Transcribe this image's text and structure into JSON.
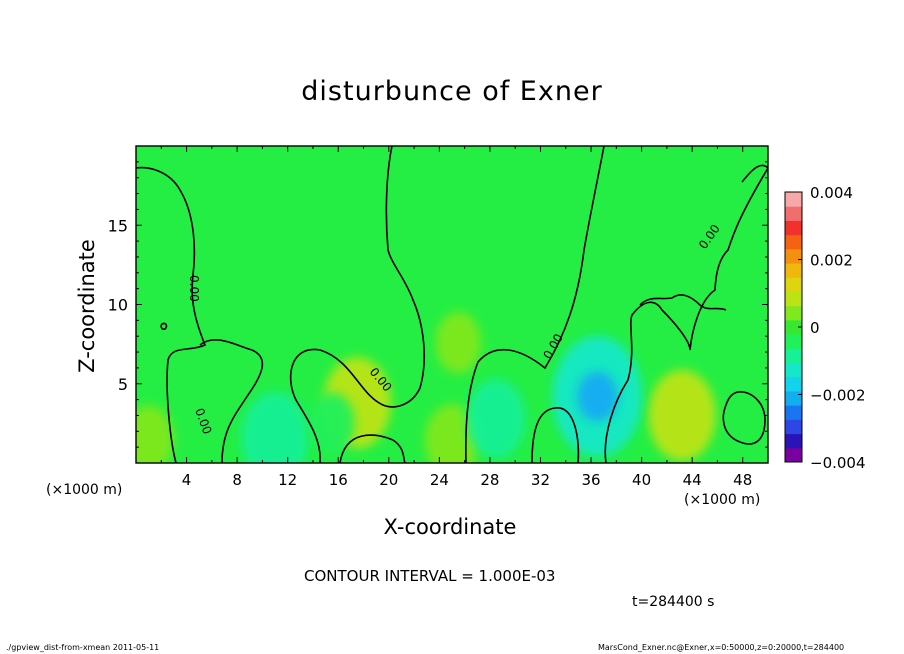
{
  "title": "disturbunce of Exner",
  "footer_left": "./gpview_dist-from-xmean  2011-05-11",
  "footer_right": "MarsCond_Exner.nc@Exner,x=0:50000,z=0:20000,t=284400",
  "contour_interval": "CONTOUR INTERVAL = 1.000E-03",
  "time_label": "t=284400 s",
  "chart_data": {
    "type": "heatmap",
    "title": "disturbunce of Exner",
    "xlabel": "X-coordinate",
    "ylabel": "Z-coordinate",
    "x_unit": "(×1000 m)",
    "y_unit": "(×1000 m)",
    "xlim": [
      0,
      50
    ],
    "ylim": [
      0,
      20
    ],
    "x_ticks": [
      4,
      8,
      12,
      16,
      20,
      24,
      28,
      32,
      36,
      40,
      44,
      48
    ],
    "y_ticks": [
      5,
      10,
      15
    ],
    "colorbar": {
      "range": [
        -0.004,
        0.004
      ],
      "ticks": [
        "0.004",
        "0.002",
        "0",
        "−0.002",
        "−0.004"
      ],
      "tick_values": [
        0.004,
        0.002,
        0,
        -0.002,
        -0.004
      ],
      "colors": [
        "#7b00a0",
        "#2a14b8",
        "#2e46e6",
        "#1a76f0",
        "#13aef0",
        "#12d2ee",
        "#15e8c8",
        "#18f096",
        "#20f05a",
        "#36e832",
        "#80e81e",
        "#bce414",
        "#ded410",
        "#f0b70d",
        "#f39010",
        "#f56212",
        "#f2302c",
        "#f06e6e",
        "#f7a8a8"
      ]
    },
    "contour_interval": 0.001,
    "contour_labels": [
      "0.00",
      "0.00",
      "0.00",
      "0.00",
      "0.00"
    ],
    "background_value": 0,
    "features": [
      {
        "kind": "positive",
        "x": 17.5,
        "z": 3.8,
        "value": 0.0009
      },
      {
        "kind": "positive",
        "x": 43.2,
        "z": 3.0,
        "value": 0.0009
      },
      {
        "kind": "positive",
        "x": 25.0,
        "z": 1.4,
        "value": 0.0006
      },
      {
        "kind": "positive",
        "x": 1.0,
        "z": 1.5,
        "value": 0.0005
      },
      {
        "kind": "positive",
        "x": 25.5,
        "z": 7.6,
        "value": 0.0004
      },
      {
        "kind": "negative",
        "x": 36.5,
        "z": 4.2,
        "value": -0.0014
      },
      {
        "kind": "negative",
        "x": 11.0,
        "z": 1.6,
        "value": -0.0009
      },
      {
        "kind": "negative",
        "x": 28.5,
        "z": 2.8,
        "value": -0.0007
      },
      {
        "kind": "negative",
        "x": 15.5,
        "z": 2.5,
        "value": -0.0004
      }
    ]
  }
}
